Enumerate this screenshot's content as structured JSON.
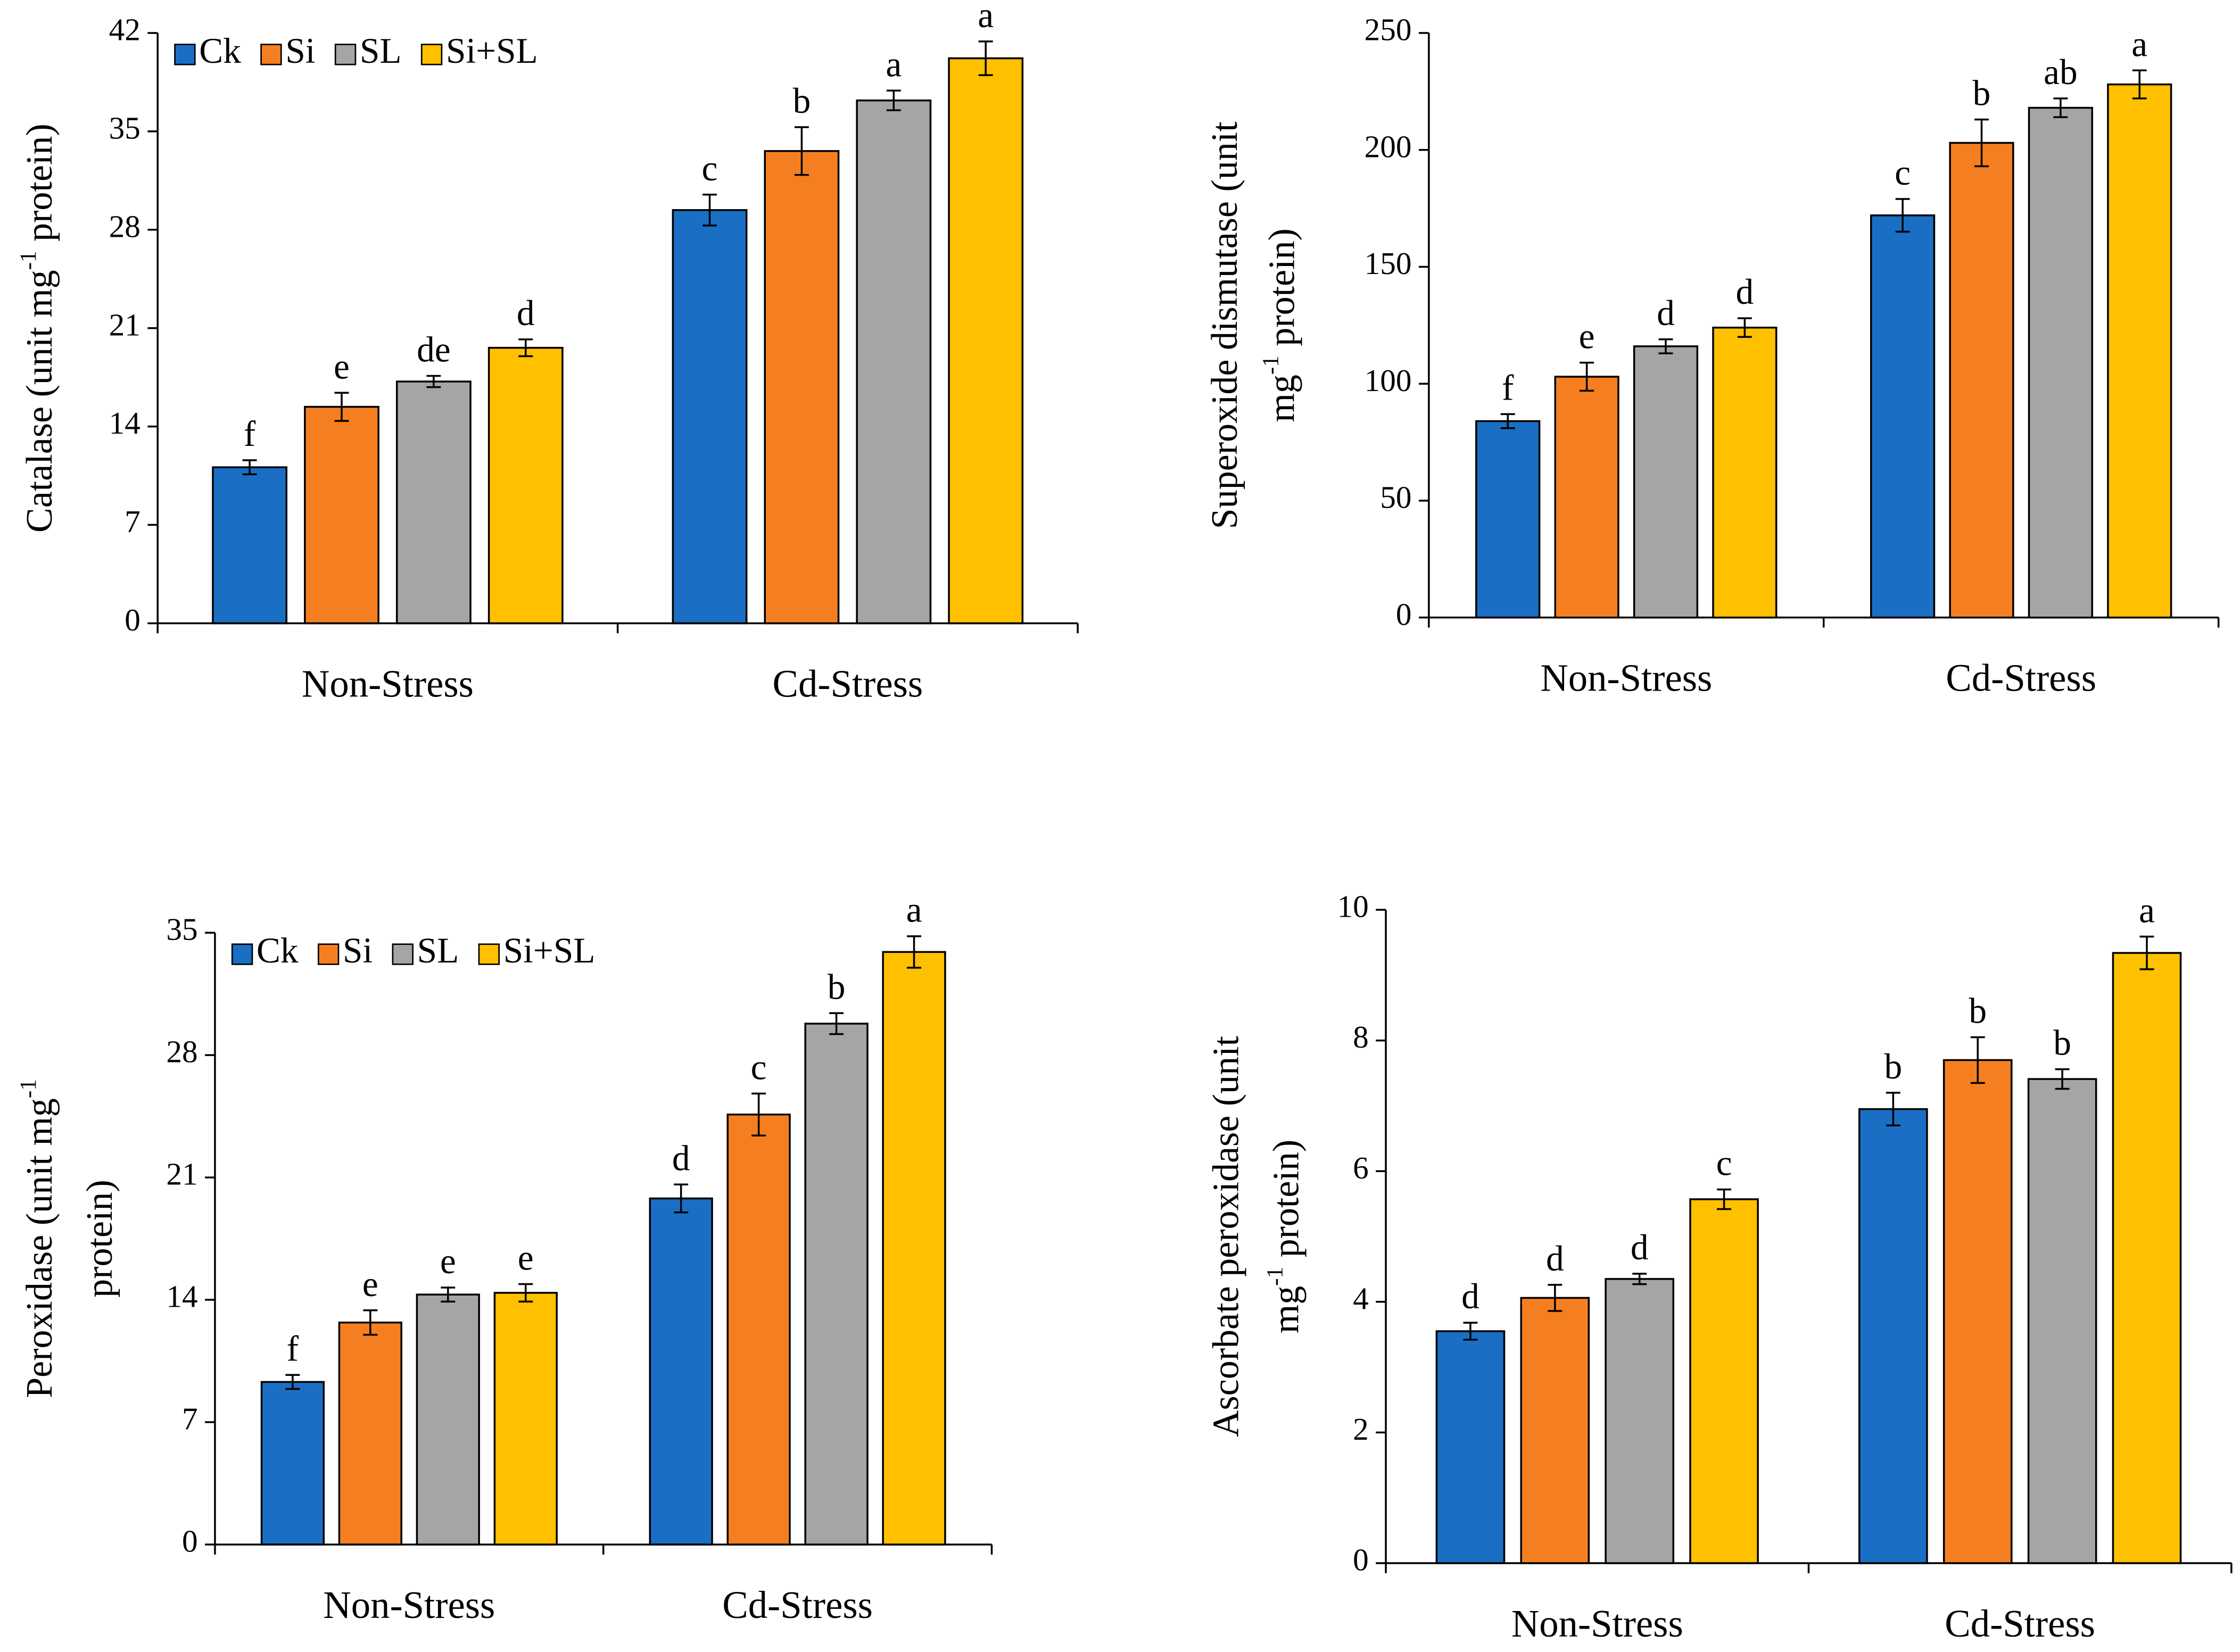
{
  "chart_data": [
    {
      "type": "bar",
      "ylabel": [
        [
          "Catalase  (unit mg",
          "-1",
          " protein)"
        ]
      ],
      "categories": [
        "Non-Stress",
        "Cd-Stress"
      ],
      "ylim": [
        0,
        42
      ],
      "yticks": [
        0,
        7,
        14,
        21,
        28,
        35,
        42
      ],
      "legend": "upper left",
      "series": [
        {
          "name": "Ck",
          "color": "#1a6fc4",
          "values": [
            11.1,
            29.4
          ],
          "errors": [
            0.5,
            1.1
          ],
          "letters": [
            "f",
            "c"
          ]
        },
        {
          "name": "Si",
          "color": "#f57f20",
          "values": [
            15.4,
            33.6
          ],
          "errors": [
            1.0,
            1.7
          ],
          "letters": [
            "e",
            "b"
          ]
        },
        {
          "name": "SL",
          "color": "#a5a5a5",
          "values": [
            17.2,
            37.2
          ],
          "errors": [
            0.4,
            0.7
          ],
          "letters": [
            "de",
            "a"
          ]
        },
        {
          "name": "Si+SL",
          "color": "#ffc000",
          "values": [
            19.6,
            40.2
          ],
          "errors": [
            0.6,
            1.2
          ],
          "letters": [
            "d",
            "a"
          ]
        }
      ]
    },
    {
      "type": "bar",
      "ylabel": [
        [
          "Superoxide dismutase  (unit"
        ],
        [
          "mg",
          "-1",
          " protein)"
        ]
      ],
      "categories": [
        "Non-Stress",
        "Cd-Stress"
      ],
      "ylim": [
        0,
        250
      ],
      "yticks": [
        0,
        50,
        100,
        150,
        200,
        250
      ],
      "series": [
        {
          "color": "#1a6fc4",
          "values": [
            84,
            172
          ],
          "errors": [
            3,
            7
          ],
          "letters": [
            "f",
            "c"
          ]
        },
        {
          "color": "#f57f20",
          "values": [
            103,
            203
          ],
          "errors": [
            6,
            10
          ],
          "letters": [
            "e",
            "b"
          ]
        },
        {
          "color": "#a5a5a5",
          "values": [
            116,
            218
          ],
          "errors": [
            3,
            4
          ],
          "letters": [
            "d",
            "ab"
          ]
        },
        {
          "color": "#ffc000",
          "values": [
            124,
            228
          ],
          "errors": [
            4,
            6
          ],
          "letters": [
            "d",
            "a"
          ]
        }
      ]
    },
    {
      "type": "bar",
      "ylabel": [
        [
          "Peroxidase  (unit mg",
          "-1"
        ],
        [
          "protein)"
        ]
      ],
      "categories": [
        "Non-Stress",
        "Cd-Stress"
      ],
      "ylim": [
        0,
        35
      ],
      "yticks": [
        0,
        7,
        14,
        21,
        28,
        35
      ],
      "legend": "upper left",
      "series": [
        {
          "name": "Ck",
          "color": "#1a6fc4",
          "values": [
            9.3,
            19.8
          ],
          "errors": [
            0.4,
            0.8
          ],
          "letters": [
            "f",
            "d"
          ]
        },
        {
          "name": "Si",
          "color": "#f57f20",
          "values": [
            12.7,
            24.6
          ],
          "errors": [
            0.7,
            1.2
          ],
          "letters": [
            "e",
            "c"
          ]
        },
        {
          "name": "SL",
          "color": "#a5a5a5",
          "values": [
            14.3,
            29.8
          ],
          "errors": [
            0.4,
            0.6
          ],
          "letters": [
            "e",
            "b"
          ]
        },
        {
          "name": "Si+SL",
          "color": "#ffc000",
          "values": [
            14.4,
            33.9
          ],
          "errors": [
            0.5,
            0.9
          ],
          "letters": [
            "e",
            "a"
          ]
        }
      ]
    },
    {
      "type": "bar",
      "ylabel": [
        [
          "Ascorbate peroxidase  (unit"
        ],
        [
          "mg",
          "-1",
          " protein)"
        ]
      ],
      "categories": [
        "Non-Stress",
        "Cd-Stress"
      ],
      "ylim": [
        0,
        10
      ],
      "yticks": [
        0,
        2,
        4,
        6,
        8,
        10
      ],
      "series": [
        {
          "color": "#1a6fc4",
          "values": [
            3.55,
            6.95
          ],
          "errors": [
            0.13,
            0.25
          ],
          "letters": [
            "d",
            "b"
          ]
        },
        {
          "color": "#f57f20",
          "values": [
            4.06,
            7.7
          ],
          "errors": [
            0.2,
            0.35
          ],
          "letters": [
            "d",
            "b"
          ]
        },
        {
          "color": "#a5a5a5",
          "values": [
            4.35,
            7.41
          ],
          "errors": [
            0.08,
            0.15
          ],
          "letters": [
            "d",
            "b"
          ]
        },
        {
          "color": "#ffc000",
          "values": [
            5.57,
            9.34
          ],
          "errors": [
            0.15,
            0.25
          ],
          "letters": [
            "c",
            "a"
          ]
        }
      ]
    }
  ]
}
